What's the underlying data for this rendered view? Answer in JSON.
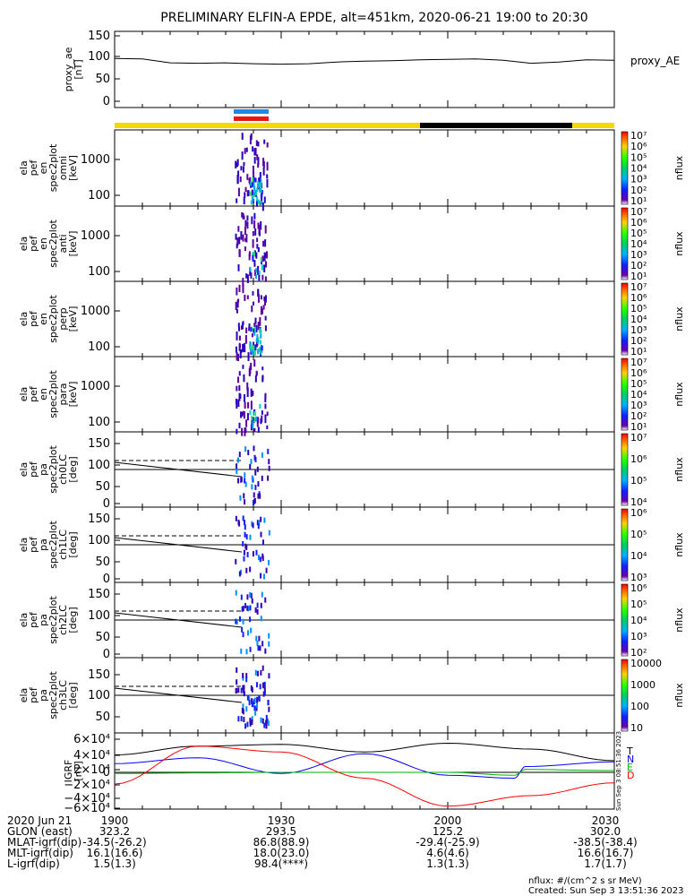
{
  "title": "PRELIMINARY ELFIN-A EPDE, alt=451km, 2020-06-21 19:00 to 20:30",
  "chart_data": [
    {
      "type": "line",
      "panel": "proxy_ae",
      "ylabel": [
        "proxy_ae",
        "[nT]"
      ],
      "legend": "proxy_AE",
      "yticks": [
        "150",
        "100",
        "50",
        "0"
      ],
      "ylim": [
        0,
        160
      ],
      "x_minutes": [
        0,
        5,
        10,
        15,
        20,
        25,
        30,
        35,
        40,
        45,
        50,
        55,
        60,
        65,
        70,
        75,
        80,
        85,
        90
      ],
      "values": [
        98,
        97,
        88,
        87,
        88,
        86,
        85,
        86,
        90,
        92,
        93,
        95,
        96,
        97,
        94,
        87,
        90,
        95,
        94
      ]
    },
    {
      "type": "heatmap",
      "panel": "omni",
      "ylabel": [
        "ela",
        "pef",
        "en",
        "spec2plot",
        "omni",
        "[keV]"
      ],
      "yticks": [
        "1000",
        "100"
      ],
      "colorbar": {
        "label": "nflux",
        "ticks": [
          "10⁷",
          "10⁶",
          "10⁵",
          "10⁴",
          "10³",
          "10²",
          "10¹"
        ]
      }
    },
    {
      "type": "heatmap",
      "panel": "anti",
      "ylabel": [
        "ela",
        "pef",
        "en",
        "spec2plot",
        "anti",
        "[keV]"
      ],
      "yticks": [
        "1000",
        "100"
      ],
      "colorbar": {
        "label": "nflux",
        "ticks": [
          "10⁷",
          "10⁶",
          "10⁵",
          "10⁴",
          "10³",
          "10²",
          "10¹"
        ]
      }
    },
    {
      "type": "heatmap",
      "panel": "perp",
      "ylabel": [
        "ela",
        "pef",
        "en",
        "spec2plot",
        "perp",
        "[keV]"
      ],
      "yticks": [
        "1000",
        "100"
      ],
      "colorbar": {
        "label": "nflux",
        "ticks": [
          "10⁷",
          "10⁶",
          "10⁵",
          "10⁴",
          "10³",
          "10²",
          "10¹"
        ]
      }
    },
    {
      "type": "heatmap",
      "panel": "para",
      "ylabel": [
        "ela",
        "pef",
        "en",
        "spec2plot",
        "para",
        "[keV]"
      ],
      "yticks": [
        "1000",
        "100"
      ],
      "colorbar": {
        "label": "nflux",
        "ticks": [
          "10⁷",
          "10⁶",
          "10⁵",
          "10⁴",
          "10³",
          "10²",
          "10¹"
        ]
      }
    },
    {
      "type": "heatmap",
      "panel": "ch0LC",
      "ylabel": [
        "ela",
        "pef",
        "pa",
        "spec2plot",
        "ch0LC",
        "[deg]"
      ],
      "yticks": [
        "150",
        "100",
        "50",
        "0"
      ],
      "colorbar": {
        "label": "nflux",
        "ticks": [
          "10⁷",
          "10⁶",
          "10⁵",
          "10⁴"
        ]
      }
    },
    {
      "type": "heatmap",
      "panel": "ch1LC",
      "ylabel": [
        "ela",
        "pef",
        "pa",
        "spec2plot",
        "ch1LC",
        "[deg]"
      ],
      "yticks": [
        "150",
        "100",
        "50",
        "0"
      ],
      "colorbar": {
        "label": "nflux",
        "ticks": [
          "10⁶",
          "10⁵",
          "10⁴",
          "10³"
        ]
      }
    },
    {
      "type": "heatmap",
      "panel": "ch2LC",
      "ylabel": [
        "ela",
        "pef",
        "pa",
        "spec2plot",
        "ch2LC",
        "[deg]"
      ],
      "yticks": [
        "150",
        "100",
        "50",
        "0"
      ],
      "colorbar": {
        "label": "nflux",
        "ticks": [
          "10⁶",
          "10⁵",
          "10⁴",
          "10³",
          "10²"
        ]
      }
    },
    {
      "type": "heatmap",
      "panel": "ch3LC",
      "ylabel": [
        "ela",
        "pef",
        "pa",
        "spec2plot",
        "ch3LC",
        "[deg]"
      ],
      "yticks": [
        "150",
        "100",
        "50"
      ],
      "colorbar": {
        "label": "nflux",
        "ticks": [
          "10000",
          "1000",
          "100",
          "10"
        ]
      }
    },
    {
      "type": "line",
      "panel": "IGRF",
      "ylabel": [
        "IGRF",
        "[nT]"
      ],
      "yticks": [
        "6×10⁴",
        "4×10⁴",
        "2×10⁴",
        "0",
        "−2×10⁴",
        "−4×10⁴",
        "−6×10⁴"
      ],
      "ylim": [
        -60000,
        60000
      ],
      "series": [
        {
          "name": "T",
          "color": "#000000",
          "x_minutes": [
            0,
            15,
            30,
            45,
            60,
            75,
            90
          ],
          "values": [
            30000,
            45000,
            48000,
            35000,
            50000,
            40000,
            20000
          ]
        },
        {
          "name": "N",
          "color": "#0000ff",
          "x_minutes": [
            0,
            15,
            30,
            45,
            60,
            72,
            74,
            90
          ],
          "values": [
            15000,
            25000,
            -2000,
            32000,
            -5000,
            -10000,
            10000,
            18000
          ]
        },
        {
          "name": "E",
          "color": "#00b000",
          "x_minutes": [
            0,
            15,
            30,
            45,
            60,
            72,
            74,
            90
          ],
          "values": [
            -2000,
            -1000,
            0,
            0,
            0,
            -5000,
            5000,
            3000
          ]
        },
        {
          "name": "D",
          "color": "#ff0000",
          "x_minutes": [
            0,
            15,
            30,
            45,
            60,
            75,
            90
          ],
          "values": [
            -20000,
            45000,
            35000,
            -10000,
            -58000,
            -40000,
            -18000
          ]
        }
      ]
    }
  ],
  "xaxis_ticks": [
    "1900",
    "1930",
    "2000",
    "2030"
  ],
  "ephemeris": {
    "rows": [
      {
        "label": "2020 Jun 21",
        "vals": [
          "1900",
          "1930",
          "2000",
          "2030"
        ]
      },
      {
        "label": "GLON (east)",
        "vals": [
          "323.2",
          "293.5",
          "125.2",
          "302.0"
        ]
      },
      {
        "label": "MLAT-igrf(dip)",
        "vals": [
          "-34.5(-26.2)",
          "86.8(88.9)",
          "-29.4(-25.9)",
          "-38.5(-38.4)"
        ]
      },
      {
        "label": "MLT-igrf(dip)",
        "vals": [
          "16.1(16.6)",
          "18.0(23.0)",
          "4.6(4.6)",
          "16.6(16.7)"
        ]
      },
      {
        "label": "L-igrf(dip)",
        "vals": [
          "1.5(1.3)",
          "98.4(****)",
          "1.3(1.3)",
          "1.7(1.7)"
        ]
      }
    ]
  },
  "footer": {
    "units": "nflux: #/(cm^2 s sr MeV)",
    "created": "Created: Sun Sep  3 13:51:36 2023",
    "vertical_stamp": "Sun Sep  3 08:51:36 2023"
  },
  "colors": {
    "sunlight": "#f5d800",
    "shadow": "#000000",
    "sci_blue": "#1f88e5",
    "sci_red": "#e81818"
  }
}
